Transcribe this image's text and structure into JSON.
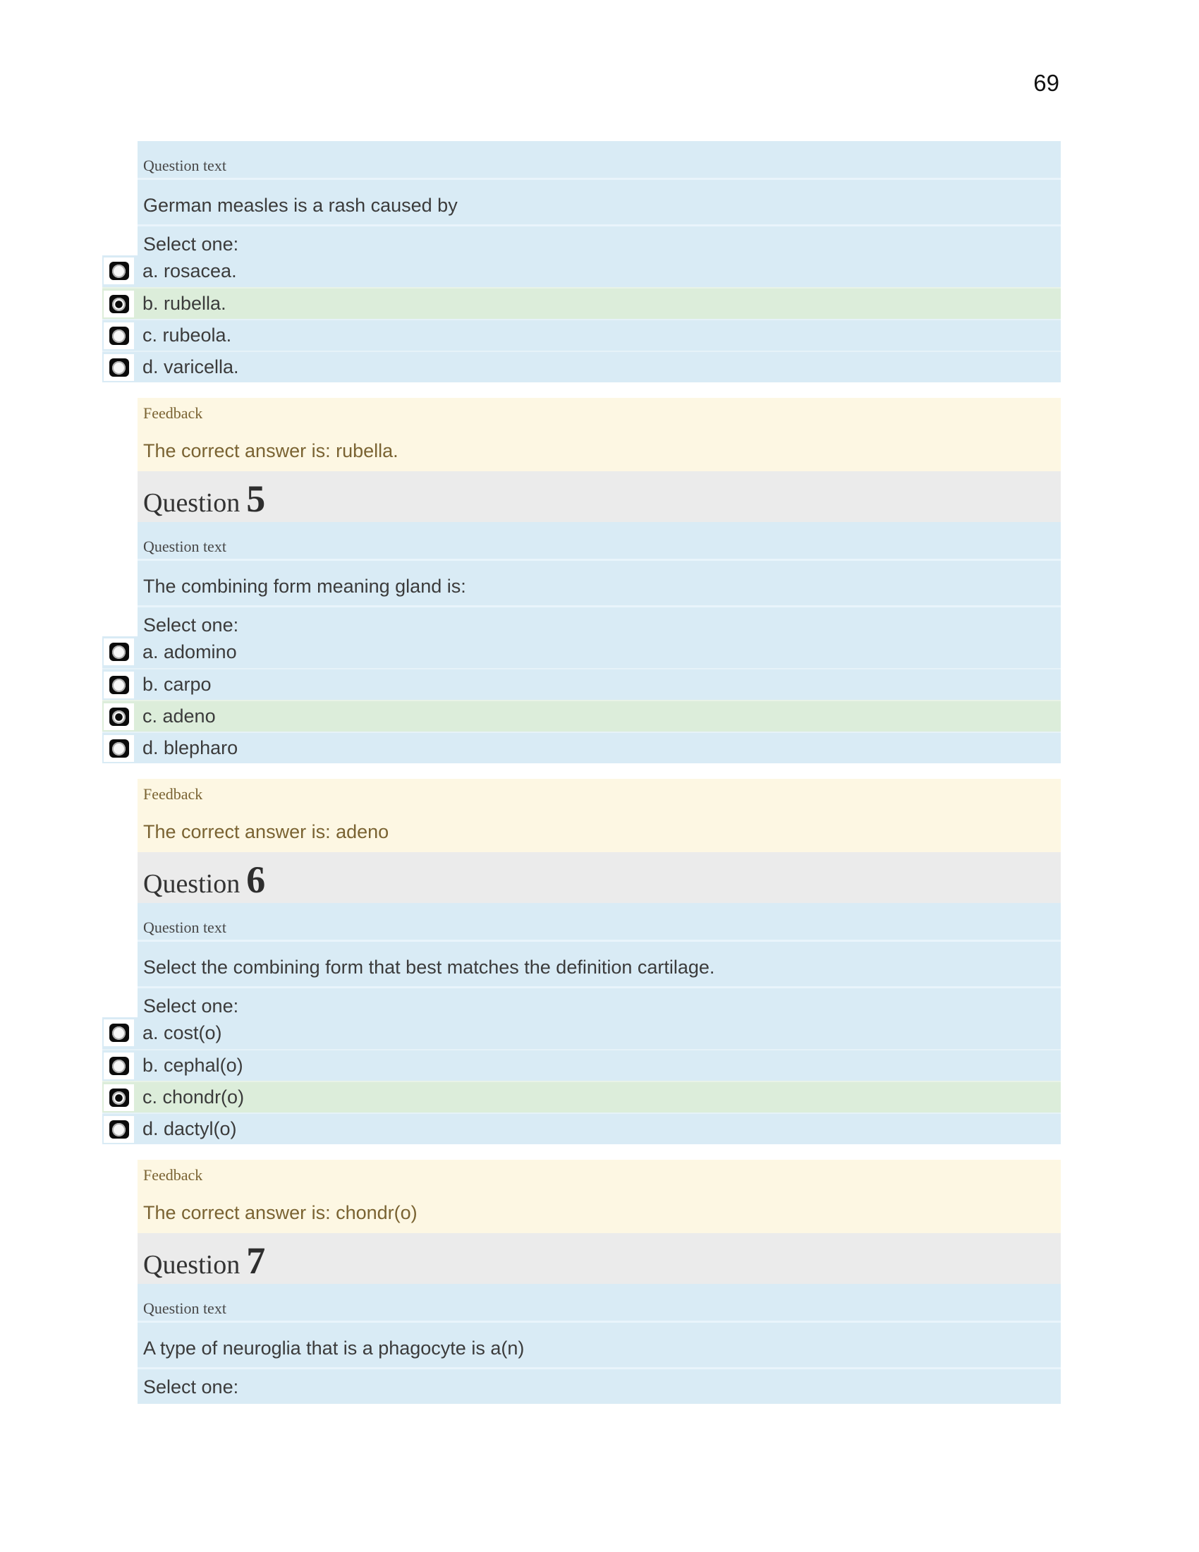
{
  "page": {
    "number": "69"
  },
  "colors": {
    "question_bg": "#d9ebf5",
    "correct_bg": "#dcedda",
    "feedback_bg": "#fdf7e3",
    "header_bg": "#ebebeb",
    "feedback_fg": "#7a6332",
    "text_fg": "#3b3b3b"
  },
  "questions": [
    {
      "question_text_label": "Question text",
      "body": "German measles is a rash caused by",
      "select_label": "Select one:",
      "options": [
        {
          "text": "a. rosacea.",
          "state": "unselected"
        },
        {
          "text": "b. rubella.",
          "state": "selected-correct"
        },
        {
          "text": "c. rubeola.",
          "state": "unselected"
        },
        {
          "text": "d. varicella.",
          "state": "unselected"
        }
      ],
      "feedback": {
        "label": "Feedback",
        "text": "The correct answer is: rubella."
      }
    },
    {
      "header": {
        "title": "Question",
        "number": "5"
      },
      "question_text_label": "Question text",
      "body": "The combining form meaning gland is:",
      "select_label": "Select one:",
      "options": [
        {
          "text": "a. adomino",
          "state": "unselected"
        },
        {
          "text": "b. carpo",
          "state": "unselected"
        },
        {
          "text": "c. adeno",
          "state": "selected-correct"
        },
        {
          "text": "d. blepharo",
          "state": "unselected"
        }
      ],
      "feedback": {
        "label": "Feedback",
        "text": "The correct answer is: adeno"
      }
    },
    {
      "header": {
        "title": "Question",
        "number": "6"
      },
      "question_text_label": "Question text",
      "body": "Select the combining form that best matches the definition cartilage.",
      "select_label": "Select one:",
      "options": [
        {
          "text": "a. cost(o)",
          "state": "unselected"
        },
        {
          "text": "b. cephal(o)",
          "state": "unselected"
        },
        {
          "text": "c. chondr(o)",
          "state": "selected-correct"
        },
        {
          "text": "d. dactyl(o)",
          "state": "unselected"
        }
      ],
      "feedback": {
        "label": "Feedback",
        "text": "The correct answer is: chondr(o)"
      }
    },
    {
      "header": {
        "title": "Question",
        "number": "7"
      },
      "question_text_label": "Question text",
      "body": "A type of neuroglia that is a phagocyte is a(n)",
      "select_label": "Select one:"
    }
  ]
}
